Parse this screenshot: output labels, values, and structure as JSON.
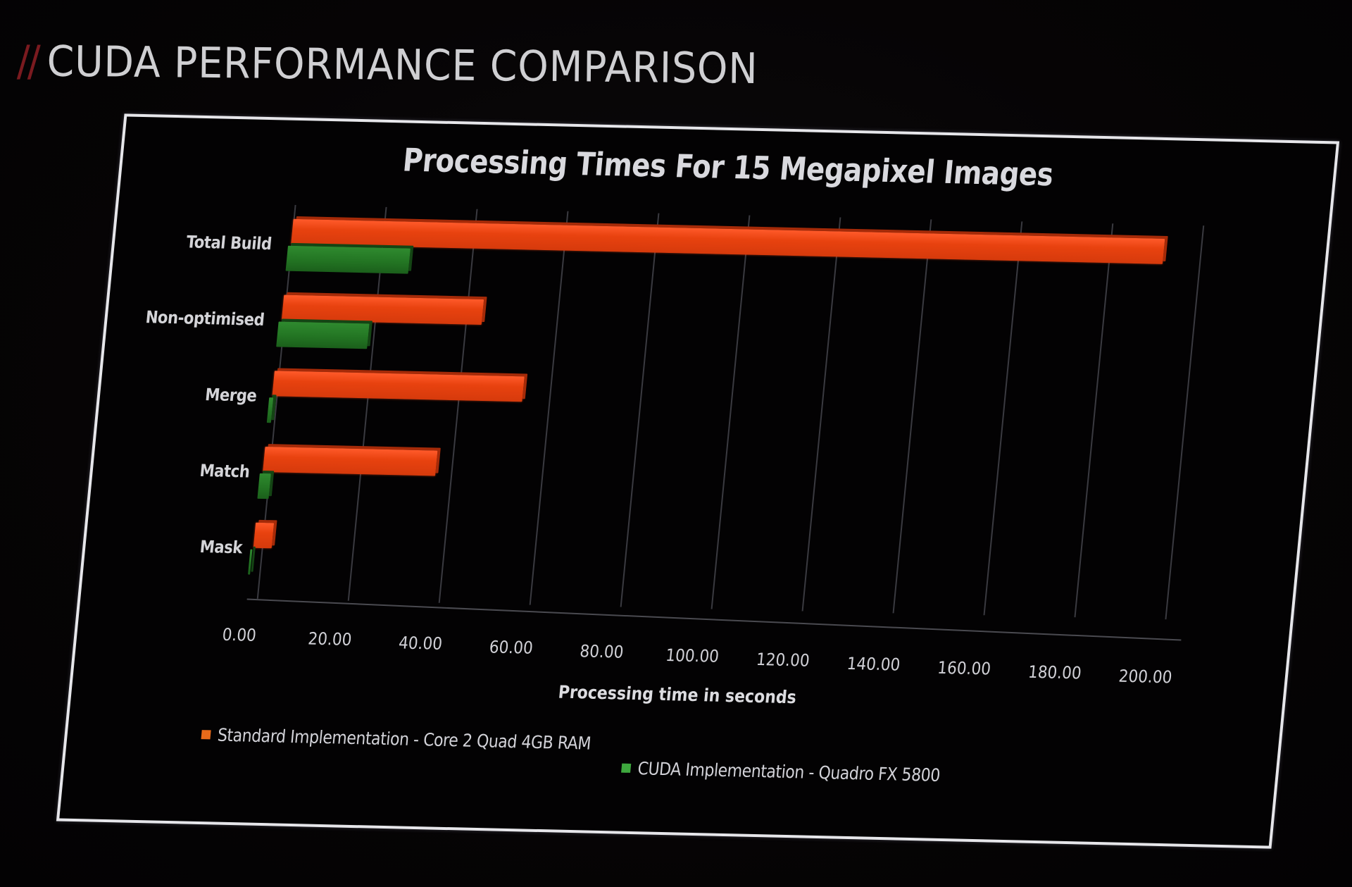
{
  "slide": {
    "title_prefix": "//",
    "title": "CUDA PERFORMANCE COMPARISON"
  },
  "colors": {
    "standard": "#e8420f",
    "cuda": "#237523",
    "accent_slashes": "#7a1a1f",
    "frame": "#e6e6ea",
    "background": "#060405"
  },
  "chart_data": {
    "type": "bar",
    "orientation": "horizontal",
    "style": "3d-clustered",
    "title": "Processing Times For 15 Megapixel Images",
    "xlabel": "Processing time in seconds",
    "ylabel": "",
    "categories": [
      "Total Build",
      "Non-optimised",
      "Merge",
      "Match",
      "Mask"
    ],
    "series": [
      {
        "name": "Standard Implementation - Core 2 Quad 4GB RAM",
        "color": "#e8420f",
        "values": [
          192,
          44,
          55,
          38,
          4
        ]
      },
      {
        "name": "CUDA Implementation - Quadro FX 5800",
        "color": "#237523",
        "values": [
          27,
          20,
          1,
          2.5,
          0.5
        ]
      }
    ],
    "x_ticks": [
      "0.00",
      "20.00",
      "40.00",
      "60.00",
      "80.00",
      "100.00",
      "120.00",
      "140.00",
      "160.00",
      "180.00",
      "200.00"
    ],
    "xlim": [
      0,
      200
    ],
    "grid": true,
    "legend_position": "bottom"
  }
}
